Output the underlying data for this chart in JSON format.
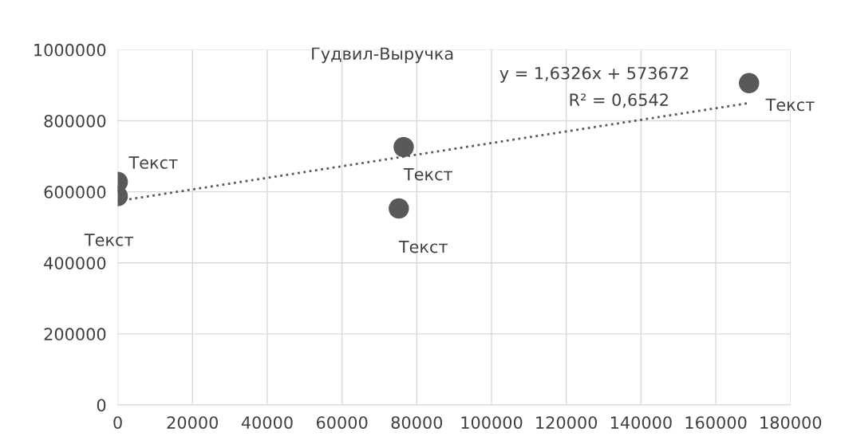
{
  "chart_data": {
    "type": "scatter",
    "title": "Гудвил-Выручка",
    "series": [
      {
        "color": "#595959",
        "marker": "circle",
        "x": [
          0,
          0,
          76500,
          75200,
          168900
        ],
        "values": [
          628000,
          588000,
          726000,
          553000,
          906000
        ]
      },
      {
        "type": "line",
        "color": "#595959",
        "line_style": "dotted",
        "marker": "none",
        "x": [
          0,
          169000
        ],
        "values": [
          574000,
          850000
        ]
      }
    ],
    "xlim": [
      0,
      180000
    ],
    "xticks": [
      0,
      20000,
      40000,
      60000,
      80000,
      100000,
      120000,
      140000,
      160000,
      180000
    ],
    "ylim": [
      0,
      1000000
    ],
    "yticks": [
      0,
      200000,
      400000,
      600000,
      800000,
      1000000
    ],
    "grid": true,
    "annotations": [
      {
        "text": "Текст",
        "x": 0,
        "y": 628000
      },
      {
        "text": "Текст",
        "x": 0,
        "y": 588000
      },
      {
        "text": "Текст",
        "x": 76500,
        "y": 726000
      },
      {
        "text": "Текст",
        "x": 75200,
        "y": 553000
      },
      {
        "text": "Текст",
        "x": 168900,
        "y": 906000
      },
      "y = 1,6326x + 573672",
      "R² = 0,6542"
    ]
  }
}
